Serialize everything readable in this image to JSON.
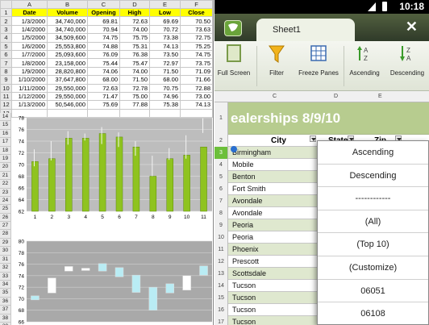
{
  "left": {
    "col_headers": [
      "A",
      "B",
      "C",
      "D",
      "E",
      "F"
    ],
    "table_headers": [
      "Date",
      "Volume",
      "Opening",
      "High",
      "Low",
      "Close"
    ],
    "rows": [
      [
        "1/3/2000",
        "34,740,000",
        "69.81",
        "72.63",
        "69.69",
        "70.50"
      ],
      [
        "1/4/2000",
        "34,740,000",
        "70.94",
        "74.00",
        "70.72",
        "73.63"
      ],
      [
        "1/5/2000",
        "34,509,600",
        "74.75",
        "75.75",
        "73.38",
        "72.75"
      ],
      [
        "1/6/2000",
        "25,553,800",
        "74.88",
        "75.31",
        "74.13",
        "75.25"
      ],
      [
        "1/7/2000",
        "25,093,600",
        "76.09",
        "76.38",
        "73.50",
        "74.75"
      ],
      [
        "1/8/2000",
        "23,158,000",
        "75.44",
        "75.47",
        "72.97",
        "73.75"
      ],
      [
        "1/9/2000",
        "28,820,800",
        "74.06",
        "74.00",
        "71.50",
        "71.09"
      ],
      [
        "1/10/2000",
        "37,647,800",
        "68.00",
        "71.50",
        "68.00",
        "71.66"
      ],
      [
        "1/11/2000",
        "29,550,000",
        "72.63",
        "72.78",
        "70.75",
        "72.88"
      ],
      [
        "1/12/2000",
        "29,550,000",
        "71.47",
        "75.00",
        "74.96",
        "73.00"
      ],
      [
        "1/13/2000",
        "50,546,000",
        "75.69",
        "77.88",
        "75.38",
        "74.13"
      ]
    ],
    "rownum_labels": [
      "1",
      "2",
      "3",
      "4",
      "5",
      "6",
      "7",
      "8",
      "9",
      "10",
      "11",
      "12",
      "13"
    ],
    "chart1": {
      "rownums": [
        "14",
        "15",
        "16",
        "17",
        "18",
        "19",
        "20",
        "21",
        "22",
        "23",
        "24",
        "25",
        "26",
        "27",
        "28"
      ]
    },
    "chart2": {
      "rownums": [
        "29",
        "30",
        "31",
        "32",
        "33",
        "34",
        "35",
        "36",
        "37",
        "38",
        "39"
      ]
    }
  },
  "chart_data": [
    {
      "type": "bar",
      "categories": [
        "1",
        "2",
        "3",
        "4",
        "5",
        "6",
        "7",
        "8",
        "9",
        "10",
        "11"
      ],
      "values": [
        70.5,
        71.0,
        74.5,
        74.5,
        75.3,
        74.7,
        73.0,
        68.0,
        71.0,
        71.6,
        73.0
      ],
      "high": [
        72.6,
        74.0,
        75.7,
        75.3,
        76.4,
        75.5,
        74.0,
        71.5,
        72.8,
        75.0,
        77.9
      ],
      "low": [
        69.7,
        70.7,
        73.4,
        74.1,
        73.5,
        73.0,
        71.5,
        68.0,
        70.8,
        71.0,
        75.4
      ],
      "ylim": [
        62,
        78
      ],
      "yticks": [
        "62",
        "64",
        "66",
        "68",
        "70",
        "72",
        "74",
        "76",
        "78"
      ],
      "grid": true
    },
    {
      "type": "candlestick",
      "ylim": [
        66,
        80
      ],
      "yticks": [
        "66",
        "68",
        "70",
        "72",
        "74",
        "76",
        "78",
        "80"
      ],
      "boxes": [
        [
          70.5,
          69.8
        ],
        [
          71.0,
          73.6
        ],
        [
          74.8,
          75.6
        ],
        [
          74.9,
          75.3
        ],
        [
          76.1,
          74.8
        ],
        [
          75.4,
          73.8
        ],
        [
          74.1,
          71.1
        ],
        [
          72.0,
          68.0
        ],
        [
          72.6,
          71.0
        ],
        [
          71.5,
          74.0
        ],
        [
          75.7,
          74.1
        ]
      ]
    }
  ],
  "right": {
    "status": {
      "time": "10:18"
    },
    "tab_label": "Sheet1",
    "close_glyph": "✕",
    "toolbar": [
      {
        "name": "full-screen-button",
        "label": "Full Screen",
        "left": 2
      },
      {
        "name": "filter-button",
        "label": "Filter",
        "left": 63
      },
      {
        "name": "freeze-panes-button",
        "label": "Freeze Panes",
        "left": 104
      },
      {
        "name": "sort-ascending-button",
        "label": "Ascending",
        "left": 163
      },
      {
        "name": "sort-descending-button",
        "label": "Descending",
        "left": 214
      }
    ],
    "col_headers": [
      "C",
      "D",
      "E"
    ],
    "title": "ealerships 8/9/10",
    "header_row": [
      "City",
      "State",
      "Zip"
    ],
    "rows": [
      {
        "n": "3",
        "city": "Birmingham"
      },
      {
        "n": "4",
        "city": "Mobile"
      },
      {
        "n": "5",
        "city": "Benton"
      },
      {
        "n": "6",
        "city": "Fort Smith"
      },
      {
        "n": "7",
        "city": "Avondale"
      },
      {
        "n": "8",
        "city": "Avondale"
      },
      {
        "n": "9",
        "city": "Peoria"
      },
      {
        "n": "10",
        "city": "Peoria"
      },
      {
        "n": "11",
        "city": "Phoenix"
      },
      {
        "n": "12",
        "city": "Prescott"
      },
      {
        "n": "13",
        "city": "Scottsdale"
      },
      {
        "n": "14",
        "city": "Tucson"
      },
      {
        "n": "15",
        "city": "Tucson"
      },
      {
        "n": "16",
        "city": "Tucson"
      },
      {
        "n": "17",
        "city": "Tucson"
      }
    ],
    "dropdown": [
      "Ascending",
      "Descending",
      "------------",
      "(All)",
      "(Top 10)",
      "(Customize)",
      "06051",
      "06108"
    ]
  }
}
